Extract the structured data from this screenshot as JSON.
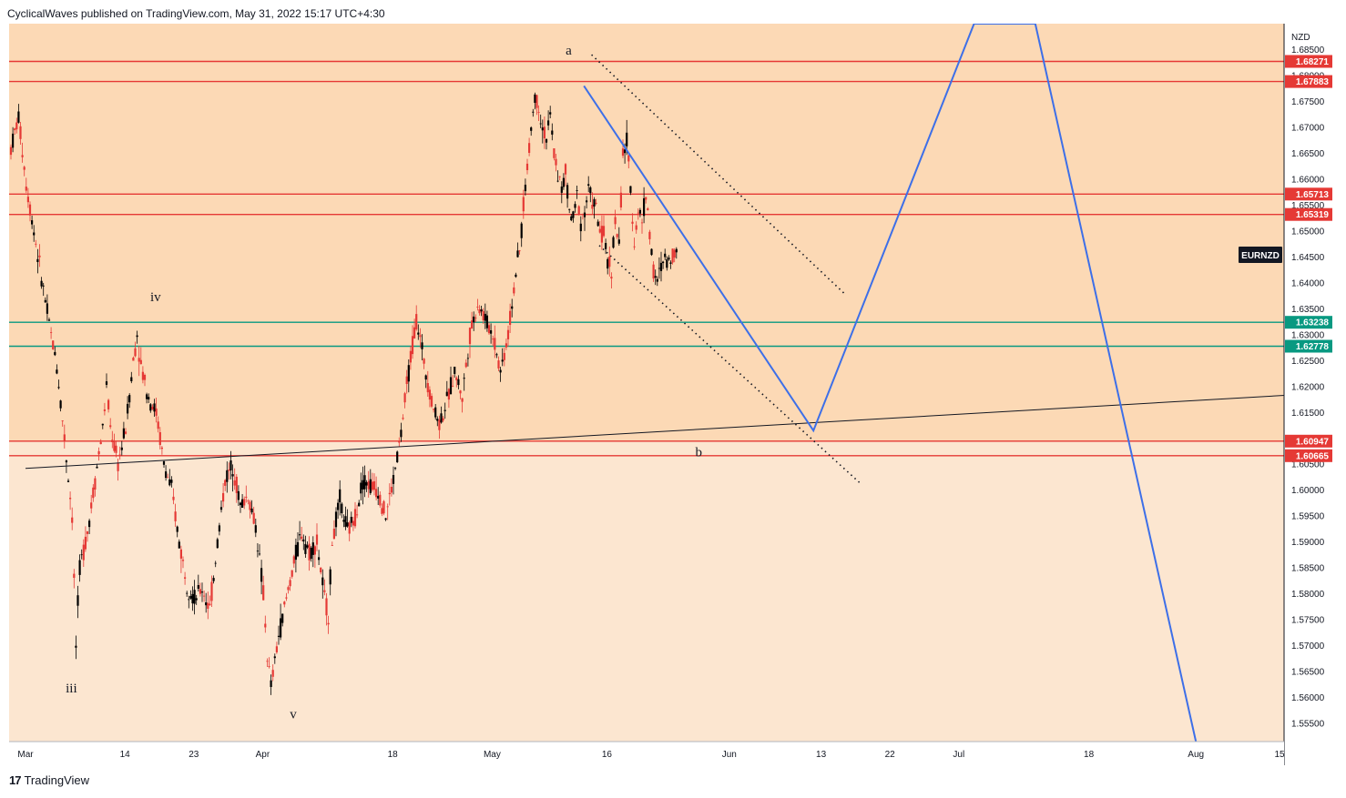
{
  "header": {
    "text": "CyclicalWaves published on TradingView.com, May 31, 2022 15:17 UTC+4:30"
  },
  "footer": {
    "brand": "TradingView",
    "logo_glyph": "17"
  },
  "colors": {
    "upper_band": "#fcd9b5",
    "lower_band": "#fce6d0",
    "resistance": "#e53935",
    "support": "#089981",
    "projection": "#3d6fe8",
    "candle": "#000000"
  },
  "chart_data": {
    "type": "candlestick",
    "symbol": "EURNZD",
    "currency_label": "NZD",
    "y_range": [
      1.5515,
      1.69
    ],
    "y_ticks": [
      "1.68500",
      "1.68000",
      "1.67500",
      "1.67000",
      "1.66500",
      "1.66000",
      "1.65500",
      "1.65000",
      "1.64500",
      "1.64000",
      "1.63500",
      "1.63000",
      "1.62500",
      "1.62000",
      "1.61500",
      "1.61000",
      "1.60500",
      "1.60000",
      "1.59500",
      "1.59000",
      "1.58500",
      "1.58000",
      "1.57500",
      "1.57000",
      "1.56500",
      "1.56000",
      "1.55500"
    ],
    "x_ticks": [
      "Mar",
      "14",
      "23",
      "Apr",
      "18",
      "May",
      "16",
      "Jun",
      "13",
      "22",
      "Jul",
      "18",
      "Aug",
      "15"
    ],
    "horizontal_levels": [
      {
        "value": 1.68271,
        "label": "1.68271",
        "kind": "resistance"
      },
      {
        "value": 1.67883,
        "label": "1.67883",
        "kind": "resistance"
      },
      {
        "value": 1.65713,
        "label": "1.65713",
        "kind": "resistance"
      },
      {
        "value": 1.65319,
        "label": "1.65319",
        "kind": "resistance"
      },
      {
        "value": 1.63238,
        "label": "1.63238",
        "kind": "support"
      },
      {
        "value": 1.62778,
        "label": "1.62778",
        "kind": "support"
      },
      {
        "value": 1.60947,
        "label": "1.60947",
        "kind": "resistance"
      },
      {
        "value": 1.60665,
        "label": "1.60665",
        "kind": "resistance"
      }
    ],
    "wave_labels": [
      {
        "text": "iv",
        "date": "Mar 18",
        "price": 1.6365
      },
      {
        "text": "iii",
        "date": "Mar 7",
        "price": 1.561
      },
      {
        "text": "v",
        "date": "Apr 5",
        "price": 1.556
      },
      {
        "text": "a",
        "date": "May 11",
        "price": 1.684
      },
      {
        "text": "b",
        "date": "May 28",
        "price": 1.6065
      }
    ],
    "trendline": {
      "from": {
        "date": "Feb 28",
        "price": 1.6042
      },
      "to": {
        "date": "Aug 15",
        "price": 1.6185
      }
    },
    "channel": {
      "upper": {
        "from": {
          "date": "May 14",
          "price": 1.684
        },
        "to": {
          "date": "Jun 16",
          "price": 1.638
        }
      },
      "lower": {
        "from": {
          "date": "May 15",
          "price": 1.6472
        },
        "to": {
          "date": "Jun 18",
          "price": 1.6015
        }
      }
    },
    "projection_path": [
      {
        "date": "May 13",
        "price": 1.678
      },
      {
        "date": "Jun 12",
        "price": 1.6115
      },
      {
        "date": "Jul 3",
        "price": 1.69
      },
      {
        "date": "Jul 11",
        "price": 1.69
      },
      {
        "date": "Aug 1",
        "price": 1.5515
      }
    ],
    "candle_path": [
      [
        0,
        1.666
      ],
      [
        2,
        1.672
      ],
      [
        4,
        1.659
      ],
      [
        6,
        1.65
      ],
      [
        8,
        1.641
      ],
      [
        10,
        1.632
      ],
      [
        12,
        1.624
      ],
      [
        14,
        1.61
      ],
      [
        16,
        1.595
      ],
      [
        17,
        1.57
      ],
      [
        18,
        1.585
      ],
      [
        20,
        1.592
      ],
      [
        22,
        1.602
      ],
      [
        24,
        1.612
      ],
      [
        25,
        1.62
      ],
      [
        26,
        1.612
      ],
      [
        28,
        1.605
      ],
      [
        30,
        1.612
      ],
      [
        32,
        1.625
      ],
      [
        33,
        1.63
      ],
      [
        34,
        1.624
      ],
      [
        36,
        1.618
      ],
      [
        38,
        1.615
      ],
      [
        40,
        1.605
      ],
      [
        42,
        1.6
      ],
      [
        44,
        1.59
      ],
      [
        46,
        1.582
      ],
      [
        48,
        1.579
      ],
      [
        50,
        1.581
      ],
      [
        52,
        1.577
      ],
      [
        54,
        1.59
      ],
      [
        56,
        1.602
      ],
      [
        58,
        1.605
      ],
      [
        60,
        1.597
      ],
      [
        62,
        1.599
      ],
      [
        64,
        1.593
      ],
      [
        66,
        1.58
      ],
      [
        67,
        1.568
      ],
      [
        68,
        1.562
      ],
      [
        70,
        1.572
      ],
      [
        72,
        1.579
      ],
      [
        74,
        1.586
      ],
      [
        76,
        1.592
      ],
      [
        78,
        1.588
      ],
      [
        80,
        1.59
      ],
      [
        82,
        1.579
      ],
      [
        83,
        1.576
      ],
      [
        84,
        1.59
      ],
      [
        86,
        1.598
      ],
      [
        88,
        1.592
      ],
      [
        90,
        1.595
      ],
      [
        92,
        1.602
      ],
      [
        94,
        1.601
      ],
      [
        96,
        1.6
      ],
      [
        98,
        1.595
      ],
      [
        100,
        1.602
      ],
      [
        102,
        1.611
      ],
      [
        104,
        1.623
      ],
      [
        106,
        1.633
      ],
      [
        108,
        1.625
      ],
      [
        110,
        1.617
      ],
      [
        112,
        1.613
      ],
      [
        114,
        1.617
      ],
      [
        116,
        1.623
      ],
      [
        118,
        1.618
      ],
      [
        120,
        1.63
      ],
      [
        122,
        1.636
      ],
      [
        124,
        1.633
      ],
      [
        126,
        1.63
      ],
      [
        128,
        1.623
      ],
      [
        130,
        1.63
      ],
      [
        132,
        1.642
      ],
      [
        133,
        1.646
      ],
      [
        134,
        1.655
      ],
      [
        135,
        1.662
      ],
      [
        136,
        1.67
      ],
      [
        137,
        1.676
      ],
      [
        138,
        1.674
      ],
      [
        139,
        1.67
      ],
      [
        140,
        1.668
      ],
      [
        141,
        1.672
      ],
      [
        142,
        1.665
      ],
      [
        143,
        1.661
      ],
      [
        144,
        1.658
      ],
      [
        145,
        1.661
      ],
      [
        146,
        1.654
      ],
      [
        147,
        1.652
      ],
      [
        148,
        1.657
      ],
      [
        149,
        1.652
      ],
      [
        150,
        1.654
      ],
      [
        151,
        1.658
      ],
      [
        152,
        1.656
      ],
      [
        153,
        1.654
      ],
      [
        154,
        1.65
      ],
      [
        155,
        1.649
      ],
      [
        156,
        1.644
      ],
      [
        157,
        1.643
      ],
      [
        158,
        1.652
      ],
      [
        159,
        1.647
      ],
      [
        160,
        1.665
      ],
      [
        161,
        1.667
      ],
      [
        162,
        1.658
      ],
      [
        163,
        1.648
      ],
      [
        164,
        1.654
      ],
      [
        165,
        1.652
      ],
      [
        166,
        1.657
      ],
      [
        167,
        1.65
      ],
      [
        168,
        1.642
      ],
      [
        169,
        1.64
      ],
      [
        170,
        1.643
      ],
      [
        171,
        1.645
      ],
      [
        172,
        1.644
      ],
      [
        173,
        1.646
      ],
      [
        174,
        1.6455
      ]
    ]
  }
}
